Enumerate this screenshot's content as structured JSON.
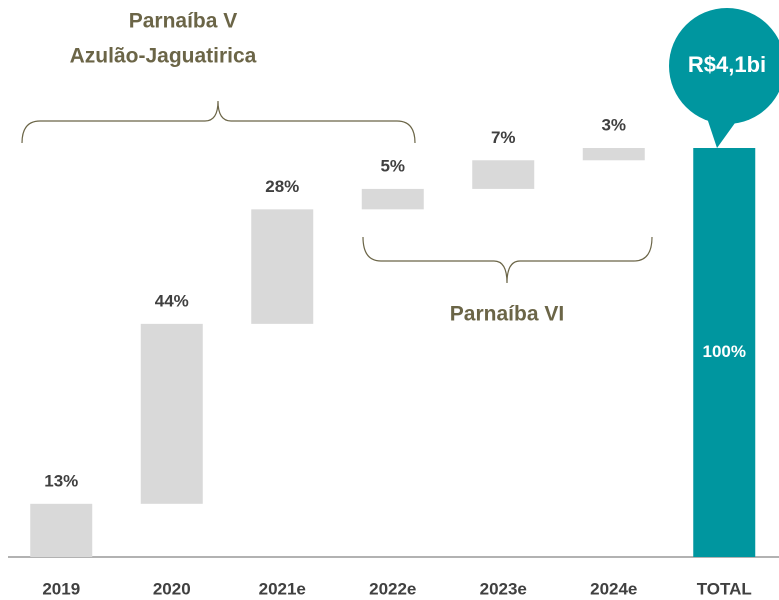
{
  "chart_data": {
    "type": "waterfall",
    "categories": [
      "2019",
      "2020",
      "2021e",
      "2022e",
      "2023e",
      "2024e",
      "TOTAL"
    ],
    "values": [
      13,
      44,
      28,
      5,
      7,
      3,
      100
    ],
    "value_labels": [
      "13%",
      "44%",
      "28%",
      "5%",
      "7%",
      "3%",
      "100%"
    ],
    "color": "#d9d9d9",
    "total_color": "#00969f",
    "annotations": [
      "Parnaíba V",
      "Azulão-Jaguatirica",
      "Parnaíba VI",
      "R$4,1bi"
    ]
  }
}
